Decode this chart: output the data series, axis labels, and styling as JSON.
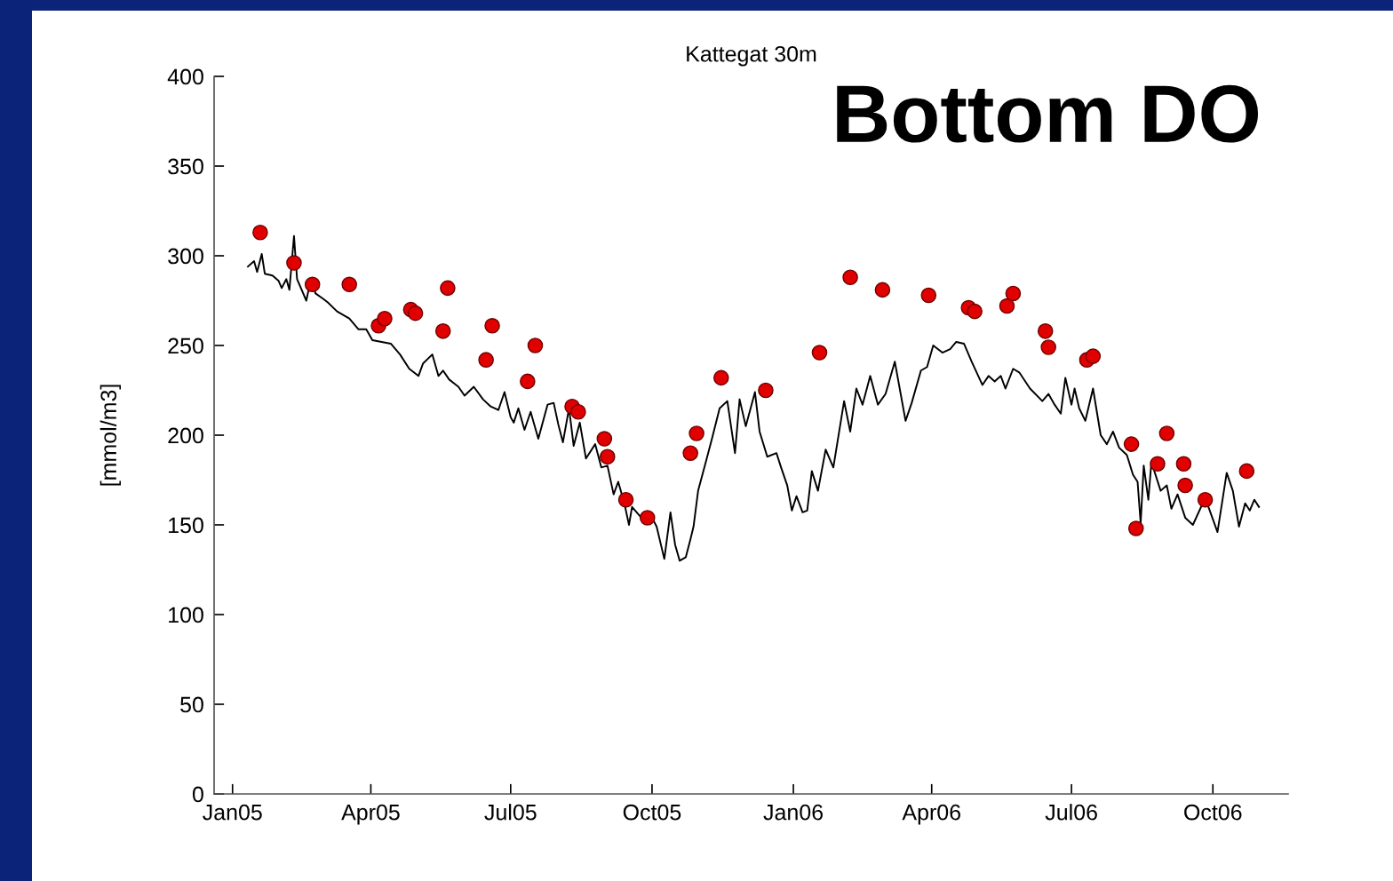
{
  "chart_data": {
    "type": "line",
    "title": "Kattegat 30m",
    "subtitle": "Bottom DO",
    "ylabel": "[mmol/m3]",
    "xlim": [
      "2004-12-20",
      "2006-11-19"
    ],
    "xticks": [
      {
        "value": "2005-01-01",
        "label": "Jan05"
      },
      {
        "value": "2005-04-01",
        "label": "Apr05"
      },
      {
        "value": "2005-07-01",
        "label": "Jul05"
      },
      {
        "value": "2005-10-01",
        "label": "Oct05"
      },
      {
        "value": "2006-01-01",
        "label": "Jan06"
      },
      {
        "value": "2006-04-01",
        "label": "Apr06"
      },
      {
        "value": "2006-07-01",
        "label": "Jul06"
      },
      {
        "value": "2006-10-01",
        "label": "Oct06"
      }
    ],
    "ylim": [
      0,
      400
    ],
    "yticks": [
      0,
      50,
      100,
      150,
      200,
      250,
      300,
      350,
      400
    ],
    "series": [
      {
        "color": "#000000",
        "line_style": "solid",
        "x": [
          "2005-01-11",
          "2005-01-15",
          "2005-01-17",
          "2005-01-20",
          "2005-01-22",
          "2005-01-27",
          "2005-01-31",
          "2005-02-02",
          "2005-02-05",
          "2005-02-07",
          "2005-02-10",
          "2005-02-12",
          "2005-02-15",
          "2005-02-18",
          "2005-02-21",
          "2005-02-24",
          "2005-03-01",
          "2005-03-04",
          "2005-03-10",
          "2005-03-18",
          "2005-03-24",
          "2005-03-29",
          "2005-04-02",
          "2005-04-08",
          "2005-04-14",
          "2005-04-20",
          "2005-04-26",
          "2005-05-02",
          "2005-05-05",
          "2005-05-11",
          "2005-05-15",
          "2005-05-18",
          "2005-05-22",
          "2005-05-28",
          "2005-06-01",
          "2005-06-07",
          "2005-06-13",
          "2005-06-18",
          "2005-06-23",
          "2005-06-27",
          "2005-07-01",
          "2005-07-03",
          "2005-07-06",
          "2005-07-10",
          "2005-07-14",
          "2005-07-19",
          "2005-07-25",
          "2005-07-29",
          "2005-08-01",
          "2005-08-04",
          "2005-08-08",
          "2005-08-11",
          "2005-08-15",
          "2005-08-19",
          "2005-08-25",
          "2005-08-29",
          "2005-09-02",
          "2005-09-06",
          "2005-09-09",
          "2005-09-13",
          "2005-09-16",
          "2005-09-18",
          "2005-09-23",
          "2005-09-27",
          "2005-10-01",
          "2005-10-04",
          "2005-10-09",
          "2005-10-13",
          "2005-10-16",
          "2005-10-19",
          "2005-10-23",
          "2005-10-26",
          "2005-10-28",
          "2005-10-31",
          "2005-11-05",
          "2005-11-09",
          "2005-11-14",
          "2005-11-19",
          "2005-11-24",
          "2005-11-27",
          "2005-12-01",
          "2005-12-07",
          "2005-12-10",
          "2005-12-15",
          "2005-12-21",
          "2005-12-24",
          "2005-12-28",
          "2005-12-31",
          "2006-01-03",
          "2006-01-07",
          "2006-01-10",
          "2006-01-13",
          "2006-01-17",
          "2006-01-22",
          "2006-01-27",
          "2006-02-03",
          "2006-02-07",
          "2006-02-11",
          "2006-02-15",
          "2006-02-20",
          "2006-02-25",
          "2006-03-02",
          "2006-03-08",
          "2006-03-15",
          "2006-03-19",
          "2006-03-25",
          "2006-03-29",
          "2006-04-02",
          "2006-04-08",
          "2006-04-13",
          "2006-04-17",
          "2006-04-22",
          "2006-04-27",
          "2006-05-04",
          "2006-05-08",
          "2006-05-12",
          "2006-05-16",
          "2006-05-19",
          "2006-05-24",
          "2006-05-28",
          "2006-06-04",
          "2006-06-12",
          "2006-06-16",
          "2006-06-20",
          "2006-06-24",
          "2006-06-27",
          "2006-07-01",
          "2006-07-03",
          "2006-07-06",
          "2006-07-10",
          "2006-07-15",
          "2006-07-20",
          "2006-07-24",
          "2006-07-28",
          "2006-08-01",
          "2006-08-06",
          "2006-08-10",
          "2006-08-13",
          "2006-08-15",
          "2006-08-17",
          "2006-08-20",
          "2006-08-22",
          "2006-08-28",
          "2006-09-01",
          "2006-09-04",
          "2006-09-08",
          "2006-09-13",
          "2006-09-18",
          "2006-09-26",
          "2006-10-04",
          "2006-10-10",
          "2006-10-14",
          "2006-10-18",
          "2006-10-22",
          "2006-10-25",
          "2006-10-28",
          "2006-10-31"
        ],
        "values": [
          294,
          297,
          291,
          301,
          290,
          289,
          286,
          282,
          287,
          281,
          311,
          287,
          281,
          275,
          287,
          279,
          276,
          274,
          269,
          265,
          259,
          259,
          253,
          252,
          251,
          245,
          237,
          233,
          240,
          245,
          233,
          236,
          231,
          227,
          222,
          227,
          220,
          216,
          214,
          224,
          210,
          207,
          215,
          203,
          213,
          198,
          217,
          218,
          206,
          196,
          215,
          194,
          207,
          187,
          195,
          182,
          183,
          167,
          174,
          162,
          150,
          160,
          155,
          151,
          154,
          149,
          131,
          157,
          139,
          130,
          132,
          142,
          149,
          169,
          185,
          198,
          215,
          219,
          190,
          220,
          205,
          224,
          202,
          188,
          190,
          182,
          172,
          158,
          166,
          157,
          158,
          180,
          169,
          192,
          182,
          219,
          202,
          226,
          217,
          233,
          217,
          223,
          241,
          208,
          218,
          236,
          238,
          250,
          246,
          248,
          252,
          251,
          241,
          228,
          233,
          230,
          233,
          226,
          237,
          235,
          226,
          219,
          223,
          217,
          212,
          232,
          217,
          226,
          215,
          208,
          226,
          200,
          195,
          202,
          193,
          189,
          178,
          174,
          151,
          183,
          164,
          185,
          169,
          172,
          159,
          167,
          154,
          150,
          165,
          146,
          179,
          169,
          149,
          162,
          158,
          164,
          160
        ]
      },
      {
        "type": "scatter",
        "color": "#e00000",
        "marker": "circle",
        "x": [
          "2005-01-19",
          "2005-02-10",
          "2005-02-22",
          "2005-03-18",
          "2005-04-06",
          "2005-04-10",
          "2005-04-27",
          "2005-04-30",
          "2005-05-18",
          "2005-05-21",
          "2005-06-15",
          "2005-06-19",
          "2005-07-12",
          "2005-07-17",
          "2005-08-10",
          "2005-08-14",
          "2005-08-31",
          "2005-09-02",
          "2005-09-14",
          "2005-09-28",
          "2005-10-26",
          "2005-10-30",
          "2005-11-15",
          "2005-12-14",
          "2006-01-18",
          "2006-02-07",
          "2006-02-28",
          "2006-03-30",
          "2006-04-25",
          "2006-04-29",
          "2006-05-20",
          "2006-05-24",
          "2006-06-14",
          "2006-06-16",
          "2006-07-11",
          "2006-07-15",
          "2006-08-09",
          "2006-08-12",
          "2006-08-26",
          "2006-09-01",
          "2006-09-12",
          "2006-09-13",
          "2006-09-26",
          "2006-10-23"
        ],
        "values": [
          313,
          296,
          284,
          284,
          261,
          265,
          270,
          268,
          258,
          282,
          242,
          261,
          230,
          250,
          216,
          213,
          198,
          188,
          164,
          154,
          190,
          201,
          232,
          225,
          246,
          288,
          281,
          278,
          271,
          269,
          272,
          279,
          258,
          249,
          242,
          244,
          195,
          148,
          184,
          201,
          184,
          172,
          164,
          180
        ]
      }
    ]
  }
}
